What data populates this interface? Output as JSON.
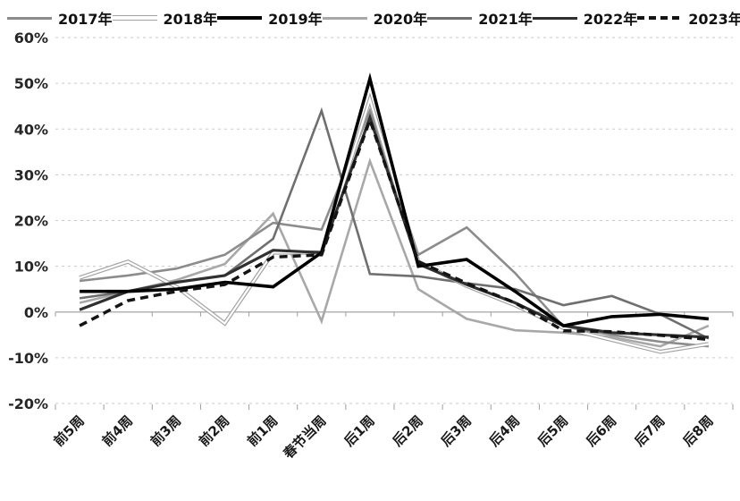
{
  "chart_data": {
    "type": "line",
    "title": "",
    "xlabel": "",
    "ylabel": "",
    "legend_position": "top",
    "grid": "horizontal-dashed",
    "categories": [
      "前5周",
      "前4周",
      "前3周",
      "前2周",
      "前1周",
      "春节当周",
      "后1周",
      "后2周",
      "后3周",
      "后4周",
      "后5周",
      "后6周",
      "后7周",
      "后8周"
    ],
    "y_axis": {
      "min": -20,
      "max": 60,
      "step": 10,
      "tick_labels": [
        "60%",
        "50%",
        "40%",
        "30%",
        "20%",
        "10%",
        "0%",
        "-10%",
        "-20%"
      ]
    },
    "series": [
      {
        "name": "2017年",
        "style": "solid",
        "color": "#8c8c8c",
        "width": 2.6,
        "values": [
          6.8,
          8,
          9.5,
          12.5,
          19.5,
          18,
          44,
          12.5,
          18.5,
          8.5,
          -3.2,
          -5,
          -6.5,
          -7.5
        ]
      },
      {
        "name": "2018年",
        "style": "double",
        "color": "#a3a3a3",
        "width": 4.6,
        "values": [
          7.5,
          11,
          5.5,
          -2.5,
          13,
          13,
          46.5,
          11,
          5.7,
          1.5,
          -3.5,
          -6.1,
          -8.7,
          -7
        ]
      },
      {
        "name": "2019年",
        "style": "solid",
        "color": "#000000",
        "width": 3.6,
        "values": [
          4.5,
          4.5,
          5,
          6.5,
          5.5,
          13,
          51,
          10,
          11.5,
          4.5,
          -3,
          -1,
          -0.5,
          -1.5
        ]
      },
      {
        "name": "2020年",
        "style": "solid",
        "color": "#a8a8a8",
        "width": 2.6,
        "values": [
          2,
          4.5,
          7,
          10.5,
          21.5,
          -2,
          33,
          5,
          -1.5,
          -4,
          -4.5,
          -5.5,
          -7.5,
          -3
        ]
      },
      {
        "name": "2021年",
        "style": "solid",
        "color": "#6f6f6f",
        "width": 2.6,
        "values": [
          3,
          4.5,
          6.5,
          8,
          16,
          44,
          8.3,
          7.8,
          6.3,
          5,
          1.5,
          3.5,
          -0.5,
          -5.8
        ]
      },
      {
        "name": "2022年",
        "style": "solid",
        "color": "#303030",
        "width": 3.2,
        "values": [
          0.5,
          4.5,
          6.5,
          8,
          13.5,
          13,
          42.5,
          10.5,
          6,
          2,
          -3,
          -4.5,
          -5,
          -5.5
        ]
      },
      {
        "name": "2023年",
        "style": "dashed",
        "color": "#141414",
        "width": 3.5,
        "values": [
          -3,
          2.5,
          4.5,
          6,
          12,
          12.5,
          42,
          11,
          6.3,
          2,
          -4.1,
          -4.3,
          -5.1,
          -6
        ]
      }
    ]
  },
  "colors": {
    "background": "#ffffff",
    "gridline": "#cacaca",
    "zero_line": "#b3b3b3",
    "tick": "#9e9e9e",
    "y_label_text": "#262626",
    "x_label_text": "#1a1a1a"
  }
}
